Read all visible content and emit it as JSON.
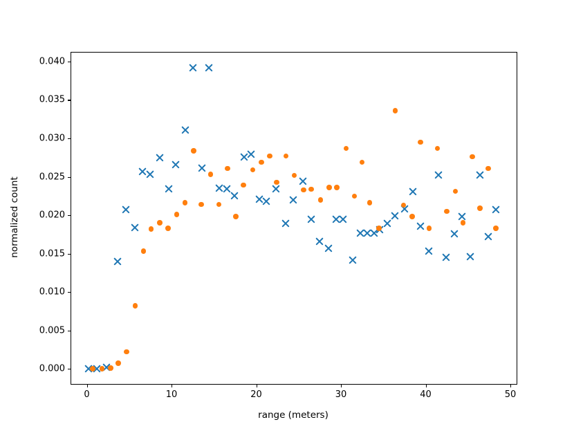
{
  "figure": {
    "background": "#ffffff",
    "spine_color": "#000000",
    "text_color": "#000000"
  },
  "chart_data": {
    "type": "scatter",
    "title": "",
    "xlabel": "range (meters)",
    "ylabel": "normalized count",
    "xlim": [
      -1.84,
      50.73
    ],
    "ylim": [
      -0.00198,
      0.04117
    ],
    "grid": false,
    "legend": "none",
    "x_ticks": [
      {
        "v": 0,
        "label": "0"
      },
      {
        "v": 10,
        "label": "10"
      },
      {
        "v": 20,
        "label": "20"
      },
      {
        "v": 30,
        "label": "30"
      },
      {
        "v": 40,
        "label": "40"
      },
      {
        "v": 50,
        "label": "50"
      }
    ],
    "y_ticks": [
      {
        "v": 0.0,
        "label": "0.000"
      },
      {
        "v": 0.005,
        "label": "0.005"
      },
      {
        "v": 0.01,
        "label": "0.010"
      },
      {
        "v": 0.015,
        "label": "0.015"
      },
      {
        "v": 0.02,
        "label": "0.020"
      },
      {
        "v": 0.025,
        "label": "0.025"
      },
      {
        "v": 0.03,
        "label": "0.030"
      },
      {
        "v": 0.035,
        "label": "0.035"
      },
      {
        "v": 0.04,
        "label": "0.040"
      }
    ],
    "series": [
      {
        "name": "blue-x-series",
        "marker": "x",
        "color": "#1f77b4",
        "points": [
          [
            0.2,
            0.0
          ],
          [
            1.2,
            0.0
          ],
          [
            2.3,
            0.0002
          ],
          [
            3.6,
            0.014
          ],
          [
            4.6,
            0.0207
          ],
          [
            5.7,
            0.0184
          ],
          [
            6.6,
            0.0257
          ],
          [
            7.5,
            0.0253
          ],
          [
            8.6,
            0.0275
          ],
          [
            9.7,
            0.0234
          ],
          [
            10.5,
            0.0266
          ],
          [
            11.6,
            0.0311
          ],
          [
            12.5,
            0.0392
          ],
          [
            13.6,
            0.0261
          ],
          [
            14.4,
            0.0392
          ],
          [
            15.6,
            0.0235
          ],
          [
            16.5,
            0.0234
          ],
          [
            17.4,
            0.0225
          ],
          [
            18.6,
            0.0276
          ],
          [
            19.4,
            0.0279
          ],
          [
            20.4,
            0.0221
          ],
          [
            21.2,
            0.0218
          ],
          [
            22.3,
            0.0234
          ],
          [
            23.5,
            0.0189
          ],
          [
            24.4,
            0.022
          ],
          [
            25.5,
            0.0244
          ],
          [
            26.5,
            0.0195
          ],
          [
            27.5,
            0.0166
          ],
          [
            28.5,
            0.0157
          ],
          [
            29.4,
            0.0195
          ],
          [
            30.2,
            0.0195
          ],
          [
            31.4,
            0.0141
          ],
          [
            32.3,
            0.0177
          ],
          [
            33.1,
            0.0177
          ],
          [
            33.9,
            0.0177
          ],
          [
            34.6,
            0.0181
          ],
          [
            35.5,
            0.0189
          ],
          [
            36.4,
            0.0199
          ],
          [
            37.5,
            0.0208
          ],
          [
            38.5,
            0.0231
          ],
          [
            39.4,
            0.0186
          ],
          [
            40.4,
            0.0153
          ],
          [
            41.5,
            0.0252
          ],
          [
            42.4,
            0.0145
          ],
          [
            43.4,
            0.0176
          ],
          [
            44.3,
            0.0198
          ],
          [
            45.3,
            0.0146
          ],
          [
            46.4,
            0.0252
          ],
          [
            47.4,
            0.0172
          ],
          [
            48.3,
            0.0207
          ]
        ]
      },
      {
        "name": "orange-dot-series",
        "marker": "dot",
        "color": "#ff7f0e",
        "points": [
          [
            0.7,
            0.0
          ],
          [
            1.8,
            0.0
          ],
          [
            2.8,
            0.0001
          ],
          [
            3.7,
            0.0007
          ],
          [
            4.7,
            0.0022
          ],
          [
            5.7,
            0.0082
          ],
          [
            6.7,
            0.0153
          ],
          [
            7.6,
            0.0182
          ],
          [
            8.6,
            0.019
          ],
          [
            9.6,
            0.0183
          ],
          [
            10.6,
            0.0201
          ],
          [
            11.6,
            0.0216
          ],
          [
            12.6,
            0.0284
          ],
          [
            13.5,
            0.0214
          ],
          [
            14.6,
            0.0253
          ],
          [
            15.6,
            0.0214
          ],
          [
            16.6,
            0.0261
          ],
          [
            17.6,
            0.0198
          ],
          [
            18.5,
            0.0239
          ],
          [
            19.6,
            0.0259
          ],
          [
            20.6,
            0.0269
          ],
          [
            21.6,
            0.0277
          ],
          [
            22.4,
            0.0243
          ],
          [
            23.5,
            0.0277
          ],
          [
            24.5,
            0.0252
          ],
          [
            25.6,
            0.0233
          ],
          [
            26.5,
            0.0234
          ],
          [
            27.6,
            0.022
          ],
          [
            28.6,
            0.0236
          ],
          [
            29.5,
            0.0236
          ],
          [
            30.6,
            0.0287
          ],
          [
            31.6,
            0.0225
          ],
          [
            32.5,
            0.0269
          ],
          [
            33.4,
            0.0216
          ],
          [
            34.5,
            0.0183
          ],
          [
            36.4,
            0.0336
          ],
          [
            37.4,
            0.0213
          ],
          [
            38.4,
            0.0198
          ],
          [
            39.4,
            0.0295
          ],
          [
            40.4,
            0.0183
          ],
          [
            41.4,
            0.0287
          ],
          [
            42.5,
            0.0205
          ],
          [
            43.5,
            0.0231
          ],
          [
            44.4,
            0.019
          ],
          [
            45.5,
            0.0276
          ],
          [
            46.4,
            0.0209
          ],
          [
            47.4,
            0.0261
          ],
          [
            48.3,
            0.0183
          ]
        ]
      }
    ]
  }
}
